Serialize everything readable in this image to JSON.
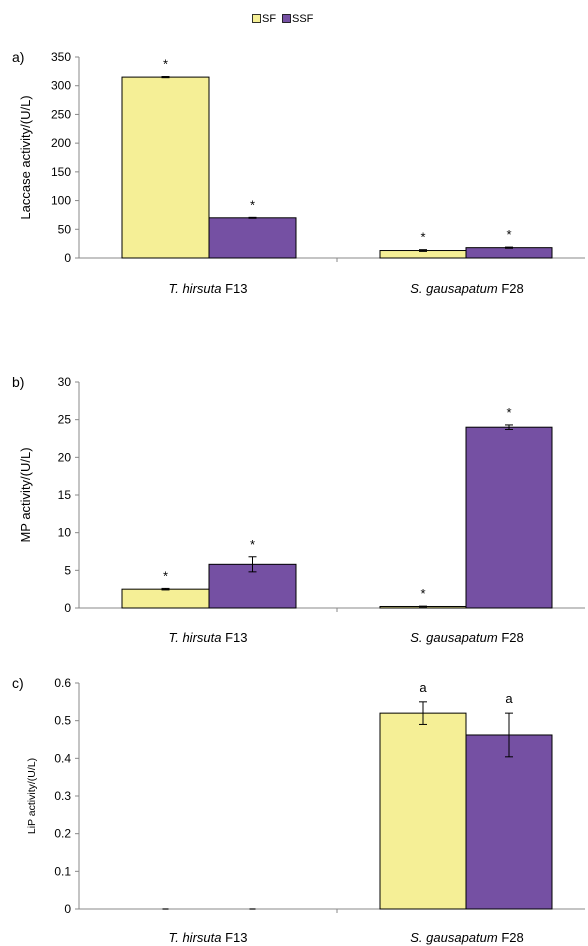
{
  "legend": [
    {
      "name": "SF",
      "color": "#f5ef96"
    },
    {
      "name": "SSF",
      "color": "#7550a3"
    }
  ],
  "chart_data": [
    {
      "type": "bar",
      "panel_label": "a)",
      "ylabel": "Laccase activity/(U/L)",
      "ylim": [
        0,
        350
      ],
      "yticks": [
        0,
        50,
        100,
        150,
        200,
        250,
        300,
        350
      ],
      "categories": [
        {
          "italic": "T. hirsuta",
          "plain": " F13"
        },
        {
          "italic": "S. gausapatum",
          "plain": " F28"
        }
      ],
      "series": [
        {
          "name": "SF",
          "values": [
            315,
            13
          ],
          "errors": [
            1,
            1.5
          ],
          "labels": [
            "*",
            "*"
          ]
        },
        {
          "name": "SSF",
          "values": [
            70,
            18
          ],
          "errors": [
            0.8,
            1
          ],
          "labels": [
            "*",
            "*"
          ]
        }
      ]
    },
    {
      "type": "bar",
      "panel_label": "b)",
      "ylabel": "MP activity/(U/L)",
      "ylim": [
        0,
        30
      ],
      "yticks": [
        0,
        5,
        10,
        15,
        20,
        25,
        30
      ],
      "categories": [
        {
          "italic": "T. hirsuta",
          "plain": " F13"
        },
        {
          "italic": "S. gausapatum",
          "plain": " F28"
        }
      ],
      "series": [
        {
          "name": "SF",
          "values": [
            2.5,
            0.2
          ],
          "errors": [
            0.1,
            0.05
          ],
          "labels": [
            "*",
            "*"
          ]
        },
        {
          "name": "SSF",
          "values": [
            5.8,
            24.0
          ],
          "errors": [
            1.0,
            0.3
          ],
          "labels": [
            "*",
            "*"
          ]
        }
      ]
    },
    {
      "type": "bar",
      "panel_label": "c)",
      "ylabel": "LiP activity/(U/L)",
      "ylim": [
        0,
        0.6
      ],
      "yticks": [
        "0",
        "0.1",
        "0.2",
        "0.3",
        "0.4",
        "0.5",
        "0.6"
      ],
      "categories": [
        {
          "italic": "T. hirsuta",
          "plain": " F13"
        },
        {
          "italic": "S. gausapatum",
          "plain": " F28"
        }
      ],
      "series": [
        {
          "name": "SF",
          "values": [
            0,
            0.52
          ],
          "errors": [
            0,
            0.03
          ],
          "labels": [
            "",
            "a"
          ]
        },
        {
          "name": "SSF",
          "values": [
            0,
            0.462
          ],
          "errors": [
            0,
            0.058
          ],
          "labels": [
            "",
            "a"
          ]
        }
      ]
    }
  ]
}
